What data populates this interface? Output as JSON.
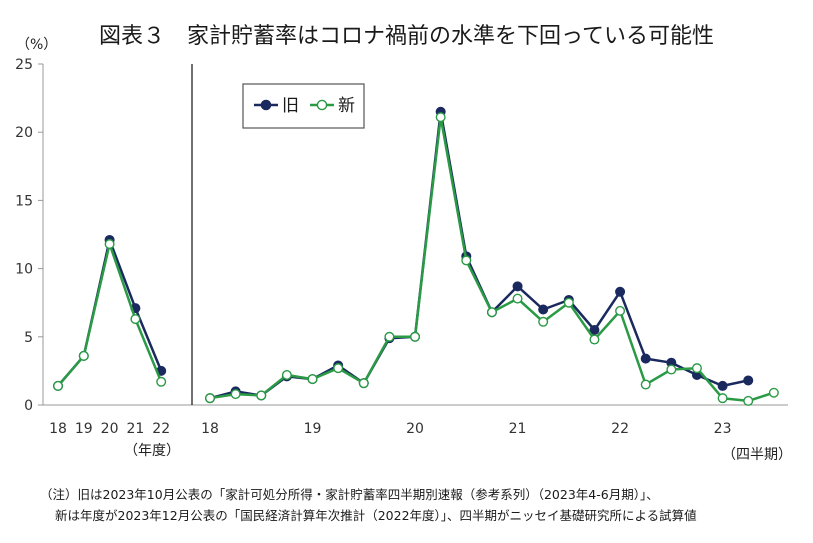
{
  "title": "図表３　家計貯蓄率はコロナ禍前の水準を下回っている可能性",
  "note_lines": [
    "（注）旧は2023年10月公表の「家計可処分所得・家計貯蓄率四半期別速報（参考系列）（2023年4-6月期）」、",
    "新は年度が2023年12月公表の「国民経済計算年次推計（2022年度）」、四半期がニッセイ基礎研究所による試算値"
  ],
  "colors": {
    "old": "#1a2a5e",
    "new": "#2a9a45",
    "axis": "#999999"
  },
  "chart_data": {
    "type": "line",
    "ylabel": "（%）",
    "ylim": [
      0,
      25
    ],
    "yticks": [
      0,
      5,
      10,
      15,
      20,
      25
    ],
    "grid": false,
    "legend": {
      "placement": "top-left of quarterly panel",
      "labels": [
        "旧",
        "新"
      ]
    },
    "annual": {
      "xlabel": "（年度）",
      "categories": [
        "18",
        "19",
        "20",
        "21",
        "22"
      ],
      "series": [
        {
          "name": "旧",
          "values": [
            1.4,
            3.6,
            12.1,
            7.1,
            2.5
          ]
        },
        {
          "name": "新",
          "values": [
            1.4,
            3.6,
            11.8,
            6.3,
            1.7
          ]
        }
      ]
    },
    "quarterly": {
      "xlabel": "（四半期）",
      "year_labels": [
        "18",
        "19",
        "20",
        "21",
        "22",
        "23"
      ],
      "series": [
        {
          "name": "旧",
          "values": [
            0.5,
            1.0,
            0.7,
            2.1,
            1.9,
            2.9,
            1.6,
            4.9,
            5.0,
            21.5,
            10.9,
            6.8,
            8.7,
            7.0,
            7.7,
            5.5,
            8.3,
            3.4,
            3.1,
            2.2,
            1.4,
            1.8,
            null
          ]
        },
        {
          "name": "新",
          "values": [
            0.5,
            0.8,
            0.7,
            2.2,
            1.9,
            2.7,
            1.6,
            5.0,
            5.0,
            21.1,
            10.6,
            6.8,
            7.8,
            6.1,
            7.5,
            4.8,
            6.9,
            1.5,
            2.6,
            2.7,
            0.5,
            0.3,
            0.9
          ]
        }
      ]
    }
  }
}
